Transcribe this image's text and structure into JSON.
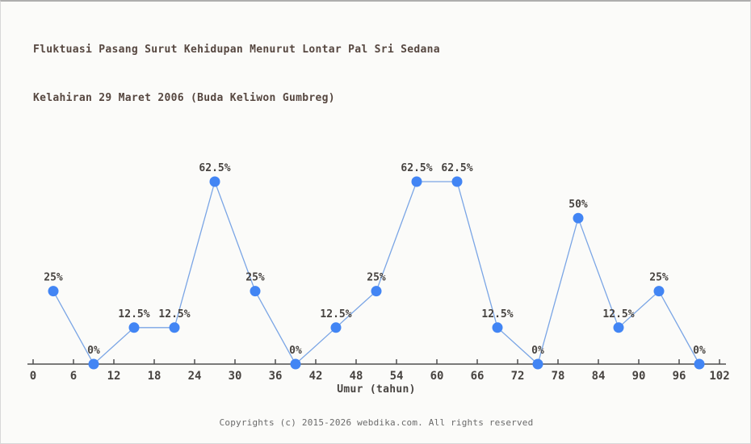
{
  "title": {
    "line1": "Fluktuasi Pasang Surut Kehidupan Menurut Lontar Pal Sri Sedana",
    "line2": "Kelahiran 29 Maret 2006 (Buda Keliwon Gumbreg)"
  },
  "x_axis_title": "Umur (tahun)",
  "footer": "Copyrights (c) 2015-2026 webdika.com. All rights reserved",
  "colors": {
    "background": "#fbfbf9",
    "title_text": "#564740",
    "label_text": "#474340",
    "axis": "#4f4f4f",
    "line": "#7aa5e5",
    "point": "#4285f4",
    "footer_text": "#6a6a6a"
  },
  "chart_data": {
    "type": "line",
    "title": "Fluktuasi Pasang Surut Kehidupan Menurut Lontar Pal Sri Sedana Kelahiran 29 Maret 2006 (Buda Keliwon Gumbreg)",
    "xlabel": "Umur (tahun)",
    "ylabel": "",
    "x": [
      3,
      9,
      15,
      21,
      27,
      33,
      39,
      45,
      51,
      57,
      63,
      69,
      75,
      81,
      87,
      93,
      99
    ],
    "values": [
      25,
      0,
      12.5,
      12.5,
      62.5,
      25,
      0,
      12.5,
      25,
      62.5,
      62.5,
      12.5,
      0,
      50,
      12.5,
      25,
      0
    ],
    "point_labels": [
      "25%",
      "0%",
      "12.5%",
      "12.5%",
      "62.5%",
      "25%",
      "0%",
      "12.5%",
      "25%",
      "62.5%",
      "62.5%",
      "12.5%",
      "0%",
      "50%",
      "12.5%",
      "25%",
      "0%"
    ],
    "x_ticks": [
      0,
      6,
      12,
      18,
      24,
      30,
      36,
      42,
      48,
      54,
      60,
      66,
      72,
      78,
      84,
      90,
      96,
      102
    ],
    "xlim": [
      0,
      102
    ],
    "ylim": [
      0,
      100
    ],
    "grid": false,
    "legend": "none",
    "marker": "circle"
  }
}
